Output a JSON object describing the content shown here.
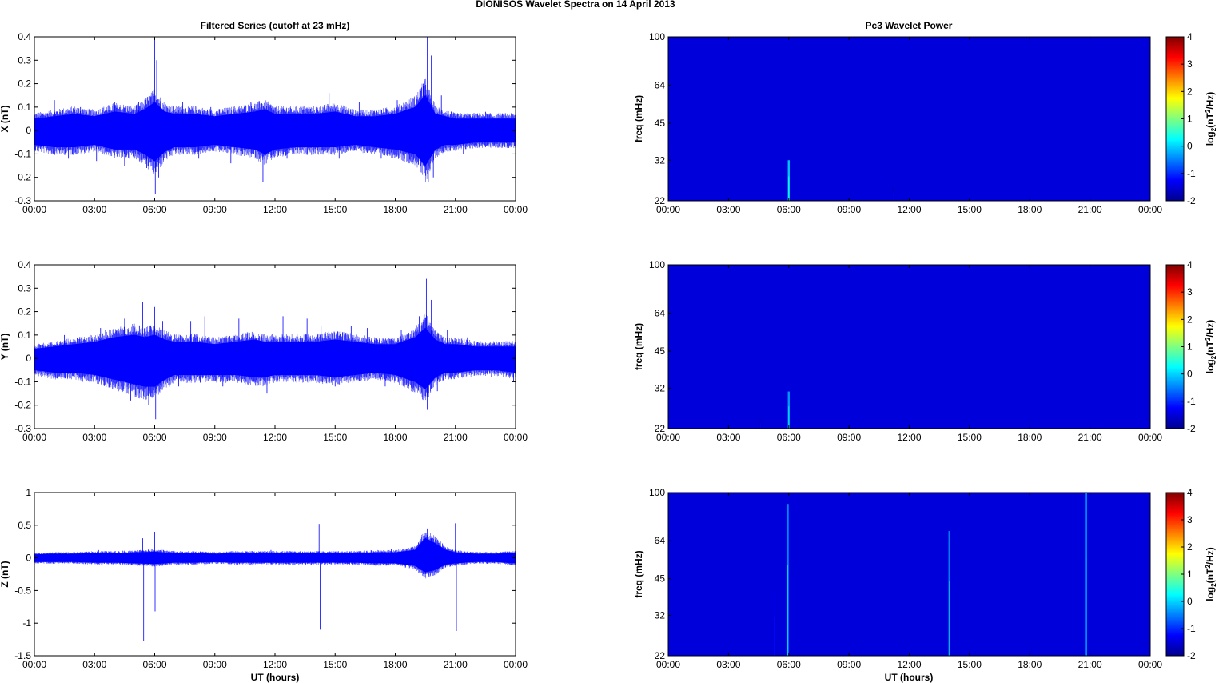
{
  "figure": {
    "title": "DIONISOS Wavelet Spectra on 14 April     2013",
    "left_column_title": "Filtered Series (cutoff at 23 mHz)",
    "right_column_title": "Pc3 Wavelet Power",
    "xlabel": "UT (hours)"
  },
  "chart_data": [
    {
      "type": "line",
      "ylabel": "X (nT)",
      "ylim": [
        -0.3,
        0.4
      ],
      "yticks": [
        "-0.3",
        "-0.2",
        "-0.1",
        "0",
        "0.1",
        "0.2",
        "0.3",
        "0.4"
      ],
      "xlim": [
        0,
        24
      ],
      "xticks": [
        "00:00",
        "03:00",
        "06:00",
        "09:00",
        "12:00",
        "15:00",
        "18:00",
        "21:00",
        "00:00"
      ],
      "color": "#0000ff",
      "grid": false,
      "envelope": {
        "name": "",
        "x": [
          0,
          1,
          2,
          3,
          4,
          5,
          5.5,
          6,
          6.5,
          7,
          8,
          9,
          10,
          11,
          11.5,
          12,
          13,
          14,
          15,
          16,
          17,
          18,
          19,
          19.5,
          20,
          20.5,
          21,
          22,
          23,
          24
        ],
        "upper": [
          0.05,
          0.06,
          0.07,
          0.06,
          0.08,
          0.07,
          0.09,
          0.12,
          0.08,
          0.07,
          0.07,
          0.06,
          0.07,
          0.08,
          0.09,
          0.07,
          0.07,
          0.07,
          0.08,
          0.06,
          0.06,
          0.07,
          0.1,
          0.15,
          0.07,
          0.06,
          0.05,
          0.05,
          0.05,
          0.05
        ],
        "lower": [
          -0.06,
          -0.07,
          -0.07,
          -0.06,
          -0.08,
          -0.08,
          -0.1,
          -0.13,
          -0.09,
          -0.07,
          -0.07,
          -0.06,
          -0.07,
          -0.08,
          -0.1,
          -0.08,
          -0.07,
          -0.07,
          -0.07,
          -0.06,
          -0.07,
          -0.08,
          -0.1,
          -0.15,
          -0.08,
          -0.06,
          -0.06,
          -0.05,
          -0.05,
          -0.05
        ]
      },
      "spikes": [
        {
          "x": 1.0,
          "y": 0.13
        },
        {
          "x": 1.7,
          "y": -0.12
        },
        {
          "x": 2.3,
          "y": 0.1
        },
        {
          "x": 3.1,
          "y": -0.13
        },
        {
          "x": 4.0,
          "y": 0.12
        },
        {
          "x": 4.5,
          "y": -0.15
        },
        {
          "x": 5.2,
          "y": 0.12
        },
        {
          "x": 5.6,
          "y": -0.16
        },
        {
          "x": 6.0,
          "y": 0.4
        },
        {
          "x": 6.03,
          "y": -0.27
        },
        {
          "x": 6.1,
          "y": 0.3
        },
        {
          "x": 6.2,
          "y": -0.2
        },
        {
          "x": 7.4,
          "y": 0.12
        },
        {
          "x": 8.2,
          "y": -0.12
        },
        {
          "x": 8.8,
          "y": 0.1
        },
        {
          "x": 9.8,
          "y": -0.14
        },
        {
          "x": 10.8,
          "y": 0.12
        },
        {
          "x": 11.3,
          "y": 0.23
        },
        {
          "x": 11.4,
          "y": -0.22
        },
        {
          "x": 11.9,
          "y": 0.14
        },
        {
          "x": 12.6,
          "y": -0.12
        },
        {
          "x": 13.5,
          "y": 0.1
        },
        {
          "x": 14.7,
          "y": 0.16
        },
        {
          "x": 15.2,
          "y": -0.12
        },
        {
          "x": 16.2,
          "y": 0.12
        },
        {
          "x": 17.3,
          "y": -0.12
        },
        {
          "x": 18.1,
          "y": 0.13
        },
        {
          "x": 18.7,
          "y": -0.14
        },
        {
          "x": 19.4,
          "y": 0.2
        },
        {
          "x": 19.6,
          "y": 0.4
        },
        {
          "x": 19.65,
          "y": -0.22
        },
        {
          "x": 19.8,
          "y": 0.32
        },
        {
          "x": 19.9,
          "y": -0.2
        },
        {
          "x": 20.3,
          "y": 0.15
        },
        {
          "x": 21.4,
          "y": -0.1
        },
        {
          "x": 22.5,
          "y": 0.08
        }
      ]
    },
    {
      "type": "line",
      "ylabel": "Y (nT)",
      "ylim": [
        -0.3,
        0.4
      ],
      "yticks": [
        "-0.3",
        "-0.2",
        "-0.1",
        "0",
        "0.1",
        "0.2",
        "0.3",
        "0.4"
      ],
      "xlim": [
        0,
        24
      ],
      "xticks": [
        "00:00",
        "03:00",
        "06:00",
        "09:00",
        "12:00",
        "15:00",
        "18:00",
        "21:00",
        "00:00"
      ],
      "color": "#0000ff",
      "grid": false,
      "envelope": {
        "name": "",
        "x": [
          0,
          1,
          2,
          3,
          4,
          5,
          5.5,
          6,
          6.5,
          7,
          8,
          9,
          10,
          11,
          11.5,
          12,
          13,
          14,
          15,
          16,
          17,
          18,
          19,
          19.5,
          20,
          20.5,
          21,
          22,
          23,
          24
        ],
        "upper": [
          0.04,
          0.05,
          0.06,
          0.07,
          0.09,
          0.1,
          0.09,
          0.1,
          0.08,
          0.07,
          0.07,
          0.06,
          0.07,
          0.08,
          0.07,
          0.07,
          0.07,
          0.07,
          0.08,
          0.07,
          0.06,
          0.06,
          0.09,
          0.13,
          0.08,
          0.06,
          0.06,
          0.05,
          0.05,
          0.05
        ],
        "lower": [
          -0.05,
          -0.06,
          -0.06,
          -0.07,
          -0.09,
          -0.11,
          -0.12,
          -0.12,
          -0.09,
          -0.07,
          -0.07,
          -0.07,
          -0.07,
          -0.08,
          -0.08,
          -0.07,
          -0.07,
          -0.07,
          -0.08,
          -0.07,
          -0.06,
          -0.07,
          -0.1,
          -0.13,
          -0.08,
          -0.06,
          -0.06,
          -0.05,
          -0.05,
          -0.06
        ]
      },
      "spikes": [
        {
          "x": 1.5,
          "y": 0.1
        },
        {
          "x": 2.4,
          "y": -0.1
        },
        {
          "x": 3.3,
          "y": 0.13
        },
        {
          "x": 3.9,
          "y": -0.13
        },
        {
          "x": 4.5,
          "y": 0.17
        },
        {
          "x": 4.8,
          "y": -0.18
        },
        {
          "x": 5.4,
          "y": 0.24
        },
        {
          "x": 5.7,
          "y": -0.2
        },
        {
          "x": 6.0,
          "y": 0.22
        },
        {
          "x": 6.05,
          "y": -0.26
        },
        {
          "x": 6.4,
          "y": 0.16
        },
        {
          "x": 7.2,
          "y": -0.12
        },
        {
          "x": 7.8,
          "y": 0.16
        },
        {
          "x": 8.5,
          "y": 0.18
        },
        {
          "x": 9.4,
          "y": -0.12
        },
        {
          "x": 10.2,
          "y": 0.17
        },
        {
          "x": 11.1,
          "y": 0.2
        },
        {
          "x": 11.6,
          "y": -0.15
        },
        {
          "x": 12.4,
          "y": 0.18
        },
        {
          "x": 13.1,
          "y": -0.13
        },
        {
          "x": 13.6,
          "y": 0.17
        },
        {
          "x": 14.3,
          "y": 0.14
        },
        {
          "x": 15.0,
          "y": -0.12
        },
        {
          "x": 15.8,
          "y": 0.14
        },
        {
          "x": 16.6,
          "y": 0.13
        },
        {
          "x": 17.5,
          "y": -0.12
        },
        {
          "x": 18.3,
          "y": 0.12
        },
        {
          "x": 19.2,
          "y": 0.18
        },
        {
          "x": 19.55,
          "y": 0.34
        },
        {
          "x": 19.6,
          "y": -0.22
        },
        {
          "x": 19.8,
          "y": 0.25
        },
        {
          "x": 20.1,
          "y": -0.14
        },
        {
          "x": 20.6,
          "y": 0.12
        },
        {
          "x": 21.6,
          "y": 0.09
        },
        {
          "x": 22.8,
          "y": -0.08
        },
        {
          "x": 23.9,
          "y": -0.1
        }
      ]
    },
    {
      "type": "line",
      "ylabel": "Z (nT)",
      "ylim": [
        -1.5,
        1
      ],
      "yticks": [
        "-1.5",
        "-1",
        "-0.5",
        "0",
        "0.5",
        "1"
      ],
      "xlim": [
        0,
        24
      ],
      "xticks": [
        "00:00",
        "03:00",
        "06:00",
        "09:00",
        "12:00",
        "15:00",
        "18:00",
        "21:00",
        "00:00"
      ],
      "color": "#0000ff",
      "grid": false,
      "envelope": {
        "name": "",
        "x": [
          0,
          1,
          2,
          3,
          4,
          5,
          6,
          7,
          8,
          9,
          10,
          11,
          12,
          13,
          14,
          15,
          16,
          17,
          18,
          19,
          19.5,
          20,
          20.5,
          21,
          22,
          23,
          24
        ],
        "upper": [
          0.05,
          0.06,
          0.06,
          0.07,
          0.07,
          0.08,
          0.09,
          0.07,
          0.07,
          0.06,
          0.07,
          0.07,
          0.07,
          0.07,
          0.07,
          0.07,
          0.07,
          0.08,
          0.08,
          0.12,
          0.3,
          0.22,
          0.12,
          0.08,
          0.06,
          0.06,
          0.07
        ],
        "lower": [
          -0.06,
          -0.06,
          -0.06,
          -0.07,
          -0.07,
          -0.08,
          -0.09,
          -0.07,
          -0.07,
          -0.06,
          -0.07,
          -0.07,
          -0.07,
          -0.07,
          -0.07,
          -0.07,
          -0.07,
          -0.08,
          -0.08,
          -0.12,
          -0.22,
          -0.18,
          -0.1,
          -0.08,
          -0.06,
          -0.06,
          -0.08
        ]
      },
      "spikes": [
        {
          "x": 5.4,
          "y": 0.3
        },
        {
          "x": 5.45,
          "y": -1.27
        },
        {
          "x": 6.0,
          "y": 0.4
        },
        {
          "x": 6.02,
          "y": -0.82
        },
        {
          "x": 14.2,
          "y": 0.52
        },
        {
          "x": 14.25,
          "y": -1.1
        },
        {
          "x": 19.6,
          "y": 0.45
        },
        {
          "x": 19.8,
          "y": 0.3
        },
        {
          "x": 21.0,
          "y": 0.53
        },
        {
          "x": 21.05,
          "y": -1.12
        },
        {
          "x": 3.2,
          "y": 0.12
        },
        {
          "x": 8.5,
          "y": -0.12
        },
        {
          "x": 11.8,
          "y": 0.12
        },
        {
          "x": 17.8,
          "y": 0.14
        }
      ]
    },
    {
      "type": "heatmap",
      "ylabel": "freq (mHz)",
      "yticks": [
        "22",
        "32",
        "45",
        "64",
        "100"
      ],
      "ylim": [
        22,
        100
      ],
      "yscale": "log",
      "xlim": [
        0,
        24
      ],
      "xticks": [
        "00:00",
        "03:00",
        "06:00",
        "09:00",
        "12:00",
        "15:00",
        "18:00",
        "21:00",
        "00:00"
      ],
      "colorbar": {
        "label": "log2(nT2/Hz)",
        "ticks": [
          "-2",
          "-1",
          "0",
          "1",
          "2",
          "3",
          "4"
        ],
        "range": [
          -2,
          4
        ],
        "colormap": "jet"
      },
      "background_value": -2,
      "streaks": [
        {
          "x": 6.0,
          "top_freq": 32,
          "peak": 0.1
        },
        {
          "x": 11.2,
          "top_freq": 25,
          "peak": -1.6
        }
      ]
    },
    {
      "type": "heatmap",
      "ylabel": "freq (mHz)",
      "yticks": [
        "22",
        "32",
        "45",
        "64",
        "100"
      ],
      "ylim": [
        22,
        100
      ],
      "yscale": "log",
      "xlim": [
        0,
        24
      ],
      "xticks": [
        "00:00",
        "03:00",
        "06:00",
        "09:00",
        "12:00",
        "15:00",
        "18:00",
        "21:00",
        "00:00"
      ],
      "colorbar": {
        "label": "log2(nT2/Hz)",
        "ticks": [
          "-2",
          "-1",
          "0",
          "1",
          "2",
          "3",
          "4"
        ],
        "range": [
          -2,
          4
        ],
        "colormap": "jet"
      },
      "background_value": -2,
      "streaks": [
        {
          "x": 6.0,
          "top_freq": 31,
          "peak": -0.2
        },
        {
          "x": 4.6,
          "top_freq": 24,
          "peak": -1.6
        }
      ]
    },
    {
      "type": "heatmap",
      "ylabel": "freq (mHz)",
      "yticks": [
        "22",
        "32",
        "45",
        "64",
        "100"
      ],
      "ylim": [
        22,
        100
      ],
      "yscale": "log",
      "xlim": [
        0,
        24
      ],
      "xticks": [
        "00:00",
        "03:00",
        "06:00",
        "09:00",
        "12:00",
        "15:00",
        "18:00",
        "21:00",
        "00:00"
      ],
      "colorbar": {
        "label": "log2(nT2/Hz)",
        "ticks": [
          "-2",
          "-1",
          "0",
          "1",
          "2",
          "3",
          "4"
        ],
        "range": [
          -2,
          4
        ],
        "colormap": "jet"
      },
      "background_value": -2,
      "streaks": [
        {
          "x": 5.3,
          "top_freq": 40,
          "peak": -1.4
        },
        {
          "x": 5.95,
          "top_freq": 90,
          "peak": -0.3
        },
        {
          "x": 14.0,
          "top_freq": 70,
          "peak": -0.4
        },
        {
          "x": 20.8,
          "top_freq": 100,
          "peak": -0.1
        }
      ]
    }
  ]
}
